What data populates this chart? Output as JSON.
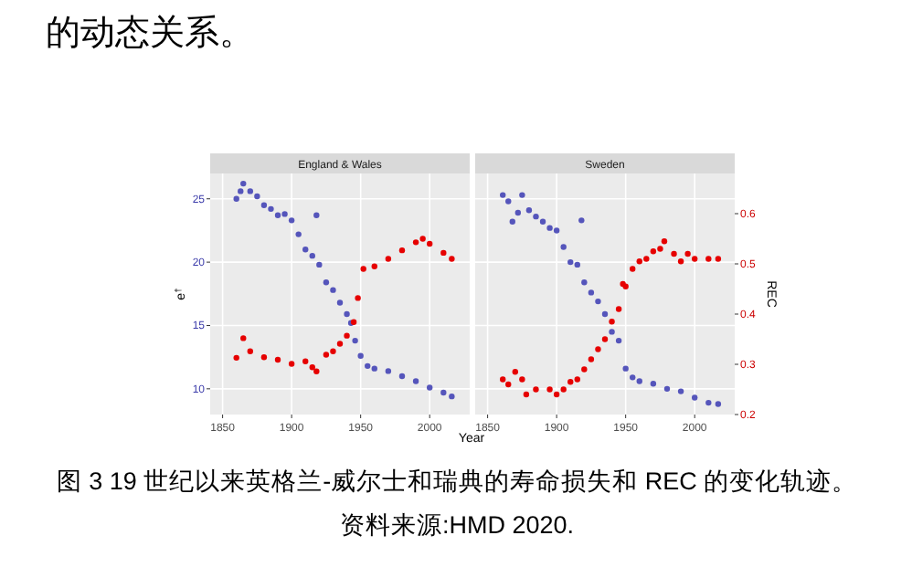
{
  "chart_data": [
    {
      "type": "scatter",
      "title": "England & Wales",
      "xlabel": "Year",
      "ylabel": "e$^{†}$",
      "y2label": "REC",
      "annotations": [
        "的动态关系。",
        "图 3 19 世纪以来英格兰-威尔士和瑞典的寿命损失和 REC 的变化轨迹。资料来源:HMD 2020."
      ],
      "xlim": [
        1841,
        2029
      ],
      "xticks": [
        1850,
        1900,
        1950,
        2000
      ],
      "ylim": [
        7.97,
        27
      ],
      "yticks": [
        10,
        15,
        20,
        25
      ],
      "y2lim": [
        0.2,
        0.68
      ],
      "tick_labels": [
        "x",
        "y"
      ],
      "grid": true,
      "marker": "circle",
      "series": [
        {
          "color": "#5555bb",
          "x": [
            1860,
            1863,
            1865,
            1870,
            1875,
            1880,
            1885,
            1890,
            1895,
            1900,
            1905,
            1910,
            1915,
            1918,
            1920,
            1925,
            1930,
            1935,
            1940,
            1943,
            1946,
            1950,
            1955,
            1960,
            1970,
            1980,
            1990,
            2000,
            2010,
            2016
          ],
          "values": [
            25.0,
            25.6,
            26.2,
            25.6,
            25.2,
            24.5,
            24.2,
            23.7,
            23.8,
            23.3,
            22.2,
            21.0,
            20.5,
            23.7,
            19.8,
            18.4,
            17.8,
            16.8,
            15.9,
            15.2,
            13.8,
            12.6,
            11.8,
            11.6,
            11.4,
            11.0,
            10.6,
            10.1,
            9.7,
            9.4
          ]
        },
        {
          "color": "#e60000",
          "axis": "y2",
          "x": [
            1860,
            1865,
            1870,
            1880,
            1890,
            1900,
            1910,
            1915,
            1918,
            1925,
            1930,
            1935,
            1940,
            1945,
            1948,
            1952,
            1960,
            1970,
            1980,
            1990,
            1995,
            2000,
            2010,
            2016
          ],
          "values": [
            0.313,
            0.352,
            0.326,
            0.314,
            0.309,
            0.301,
            0.306,
            0.294,
            0.286,
            0.319,
            0.326,
            0.341,
            0.357,
            0.384,
            0.432,
            0.49,
            0.495,
            0.51,
            0.527,
            0.543,
            0.55,
            0.54,
            0.522,
            0.51
          ]
        }
      ]
    },
    {
      "type": "scatter",
      "title": "Sweden",
      "xlim": [
        1841,
        2029
      ],
      "xticks": [
        1850,
        1900,
        1950,
        2000
      ],
      "ylim": [
        7.97,
        27
      ],
      "y2lim": [
        0.2,
        0.68
      ],
      "y2ticks": [
        0.2,
        0.3,
        0.4,
        0.5,
        0.6
      ],
      "tick_labels": [
        "x",
        "y2"
      ],
      "grid": true,
      "marker": "circle",
      "series": [
        {
          "color": "#5555bb",
          "x": [
            1861,
            1865,
            1868,
            1872,
            1875,
            1880,
            1885,
            1890,
            1895,
            1900,
            1905,
            1910,
            1915,
            1918,
            1920,
            1925,
            1930,
            1935,
            1940,
            1945,
            1950,
            1955,
            1960,
            1970,
            1980,
            1990,
            2000,
            2010,
            2017
          ],
          "values": [
            25.3,
            24.8,
            23.2,
            23.9,
            25.3,
            24.1,
            23.6,
            23.2,
            22.7,
            22.5,
            21.2,
            20.0,
            19.8,
            23.3,
            18.4,
            17.6,
            16.9,
            15.9,
            14.5,
            13.8,
            11.6,
            10.9,
            10.6,
            10.4,
            10.0,
            9.8,
            9.3,
            8.9,
            8.8
          ]
        },
        {
          "color": "#e60000",
          "axis": "y2",
          "x": [
            1861,
            1865,
            1870,
            1875,
            1878,
            1885,
            1895,
            1900,
            1905,
            1910,
            1915,
            1920,
            1925,
            1930,
            1935,
            1940,
            1945,
            1948,
            1950,
            1955,
            1960,
            1965,
            1970,
            1975,
            1978,
            1985,
            1990,
            1995,
            2000,
            2010,
            2017
          ],
          "values": [
            0.27,
            0.26,
            0.285,
            0.27,
            0.24,
            0.25,
            0.25,
            0.24,
            0.25,
            0.265,
            0.27,
            0.29,
            0.31,
            0.33,
            0.35,
            0.385,
            0.41,
            0.46,
            0.455,
            0.49,
            0.505,
            0.51,
            0.525,
            0.53,
            0.545,
            0.52,
            0.505,
            0.52,
            0.51,
            0.51,
            0.51
          ]
        }
      ]
    }
  ]
}
